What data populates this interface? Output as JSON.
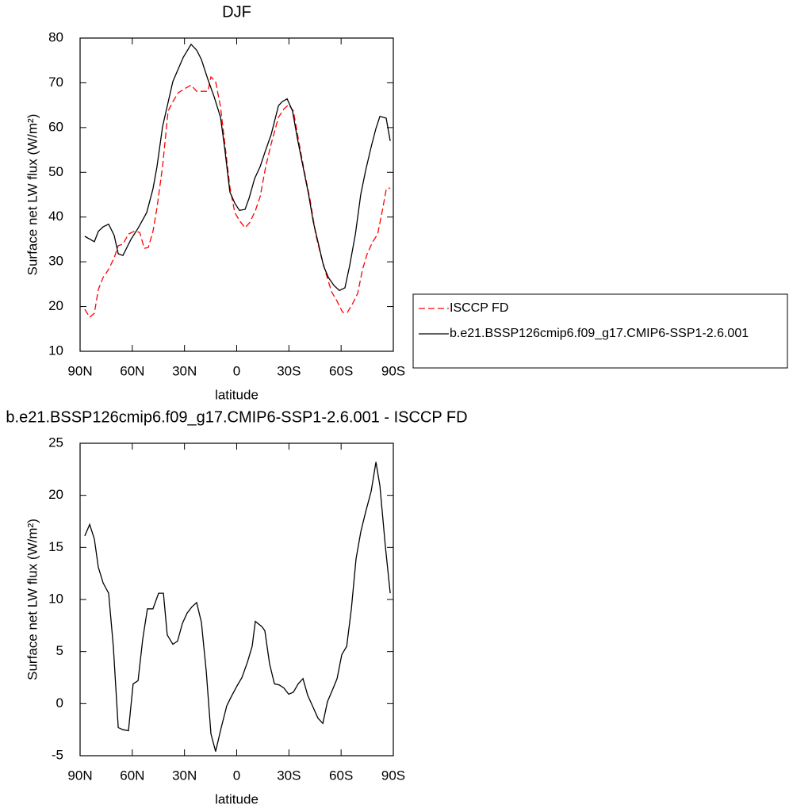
{
  "chart_data": [
    {
      "type": "line",
      "title": "DJF",
      "xlabel": "latitude",
      "ylabel": "Surface net LW flux (W/m²)",
      "xlim": [
        90,
        -90
      ],
      "xticks": [
        {
          "value": 90,
          "label": "90N"
        },
        {
          "value": 60,
          "label": "60N"
        },
        {
          "value": 30,
          "label": "30N"
        },
        0,
        {
          "value": -30,
          "label": "30S"
        },
        {
          "value": -60,
          "label": "60S"
        },
        {
          "value": -90,
          "label": "90S"
        }
      ],
      "ylim": [
        10,
        80
      ],
      "yticks": [
        10,
        20,
        30,
        40,
        50,
        60,
        70,
        80
      ],
      "legend": "right",
      "series": [
        {
          "name": "ISCCP FD",
          "color": "#ff0000",
          "dash": true,
          "x": [
            87.3,
            84.5,
            81.8,
            79.5,
            76.8,
            73.6,
            70.4,
            68.1,
            65.4,
            62.2,
            59.0,
            55.8,
            53.1,
            50.8,
            48.1,
            45.8,
            42.6,
            39.4,
            36.7,
            33.5,
            29.8,
            26.2,
            23.0,
            19.8,
            16.6,
            14.8,
            12.1,
            9.3,
            6.6,
            3.9,
            1.1,
            -1.6,
            -4.8,
            -7.5,
            -10.7,
            -13.5,
            -16.7,
            -19.8,
            -24.0,
            -27.2,
            -29.9,
            -32.6,
            -35.8,
            -39.0,
            -42.2,
            -45.4,
            -48.1,
            -51.3,
            -54.5,
            -57.7,
            -60.9,
            -63.6,
            -66.8,
            -69.5,
            -72.3,
            -75.0,
            -78.2,
            -81.0,
            -83.7,
            -86.0,
            -88.2
          ],
          "values": [
            19.4,
            17.6,
            18.5,
            23.8,
            26.5,
            28.3,
            30.9,
            33.6,
            33.9,
            36.2,
            36.8,
            36.6,
            33.0,
            33.2,
            36.8,
            42.1,
            51.3,
            63.7,
            65.8,
            67.8,
            68.7,
            69.5,
            68.1,
            68.1,
            68.1,
            71.3,
            70.3,
            64.6,
            55.7,
            46.7,
            41.0,
            39.2,
            37.6,
            38.8,
            41.4,
            44.6,
            51.3,
            56.3,
            62.3,
            64.2,
            65.1,
            63.7,
            56.6,
            49.9,
            43.8,
            36.2,
            31.8,
            27.4,
            23.3,
            21.2,
            18.7,
            18.7,
            20.8,
            22.9,
            28.3,
            31.8,
            34.5,
            36.2,
            41.5,
            46.3,
            46.5
          ]
        },
        {
          "name": "b.e21.BSSP126cmip6.f09_g17.CMIP6-SSP1-2.6.001",
          "color": "#000000",
          "dash": false,
          "x": [
            87.3,
            81.8,
            79.5,
            76.8,
            73.6,
            70.4,
            68.1,
            65.4,
            60.8,
            56.7,
            51.7,
            48.1,
            45.8,
            42.6,
            36.7,
            30.7,
            26.2,
            23.0,
            20.3,
            16.6,
            13.0,
            9.3,
            7.0,
            3.9,
            1.1,
            -1.6,
            -4.8,
            -7.1,
            -10.3,
            -13.5,
            -16.7,
            -19.8,
            -24.0,
            -26.2,
            -29.0,
            -32.1,
            -34.9,
            -38.1,
            -41.3,
            -44.0,
            -47.2,
            -49.9,
            -52.7,
            -55.9,
            -59.0,
            -62.2,
            -64.9,
            -68.2,
            -71.3,
            -74.1,
            -77.3,
            -80.0,
            -82.3,
            -85.9,
            -88.2
          ],
          "values": [
            35.7,
            34.5,
            36.8,
            37.8,
            38.4,
            35.9,
            31.8,
            31.4,
            35.0,
            37.5,
            41.0,
            46.3,
            51.3,
            60.2,
            70.3,
            75.7,
            78.6,
            77.3,
            75.2,
            70.8,
            66.9,
            62.3,
            55.7,
            45.6,
            43.1,
            41.5,
            41.7,
            44.2,
            48.6,
            51.3,
            55.0,
            58.4,
            64.9,
            65.8,
            66.4,
            63.7,
            57.5,
            51.3,
            45.1,
            38.9,
            33.6,
            29.1,
            26.5,
            24.7,
            23.6,
            24.2,
            29.1,
            36.2,
            45.1,
            50.4,
            55.7,
            59.8,
            62.5,
            62.1,
            57.0
          ]
        }
      ]
    },
    {
      "type": "line",
      "title": "b.e21.BSSP126cmip6.f09_g17.CMIP6-SSP1-2.6.001 - ISCCP FD",
      "xlabel": "latitude",
      "ylabel": "Surface net LW flux (W/m²)",
      "xlim": [
        90,
        -90
      ],
      "xticks": [
        {
          "value": 90,
          "label": "90N"
        },
        {
          "value": 60,
          "label": "60N"
        },
        {
          "value": 30,
          "label": "30N"
        },
        0,
        {
          "value": -30,
          "label": "30S"
        },
        {
          "value": -60,
          "label": "60S"
        },
        {
          "value": -90,
          "label": "90S"
        }
      ],
      "ylim": [
        -5,
        25
      ],
      "yticks": [
        -5,
        0,
        5,
        10,
        15,
        20,
        25
      ],
      "color": "#000000",
      "x": [
        87.3,
        84.5,
        81.8,
        79.5,
        76.8,
        73.6,
        70.9,
        68.1,
        65.4,
        62.2,
        59.5,
        56.7,
        54.0,
        51.3,
        48.1,
        44.9,
        42.1,
        39.9,
        36.7,
        34.0,
        31.2,
        28.5,
        25.7,
        23.0,
        20.3,
        17.5,
        14.8,
        12.1,
        8.9,
        5.7,
        3.0,
        -0.2,
        -3.0,
        -6.2,
        -8.9,
        -10.7,
        -14.4,
        -16.2,
        -18.9,
        -21.7,
        -24.4,
        -27.1,
        -29.9,
        -32.6,
        -35.3,
        -38.1,
        -40.8,
        -43.5,
        -46.7,
        -49.5,
        -52.2,
        -55.0,
        -57.7,
        -60.4,
        -63.2,
        -65.9,
        -68.6,
        -71.3,
        -74.1,
        -77.3,
        -80.0,
        -82.3,
        -85.5,
        -88.2
      ],
      "values": [
        16.1,
        17.2,
        15.8,
        13.1,
        11.6,
        10.6,
        5.5,
        -2.3,
        -2.5,
        -2.6,
        1.9,
        2.2,
        6.2,
        9.1,
        9.1,
        10.6,
        10.6,
        6.6,
        5.7,
        6.0,
        7.7,
        8.7,
        9.3,
        9.7,
        7.8,
        3.1,
        -2.9,
        -4.6,
        -2.3,
        -0.2,
        0.7,
        1.7,
        2.5,
        4.0,
        5.5,
        7.9,
        7.4,
        7.0,
        3.8,
        1.9,
        1.8,
        1.5,
        0.9,
        1.1,
        1.9,
        2.4,
        0.8,
        -0.2,
        -1.4,
        -1.9,
        0.2,
        1.3,
        2.4,
        4.7,
        5.5,
        9.1,
        13.9,
        16.5,
        18.4,
        20.4,
        23.2,
        20.9,
        15.0,
        10.6
      ]
    }
  ]
}
